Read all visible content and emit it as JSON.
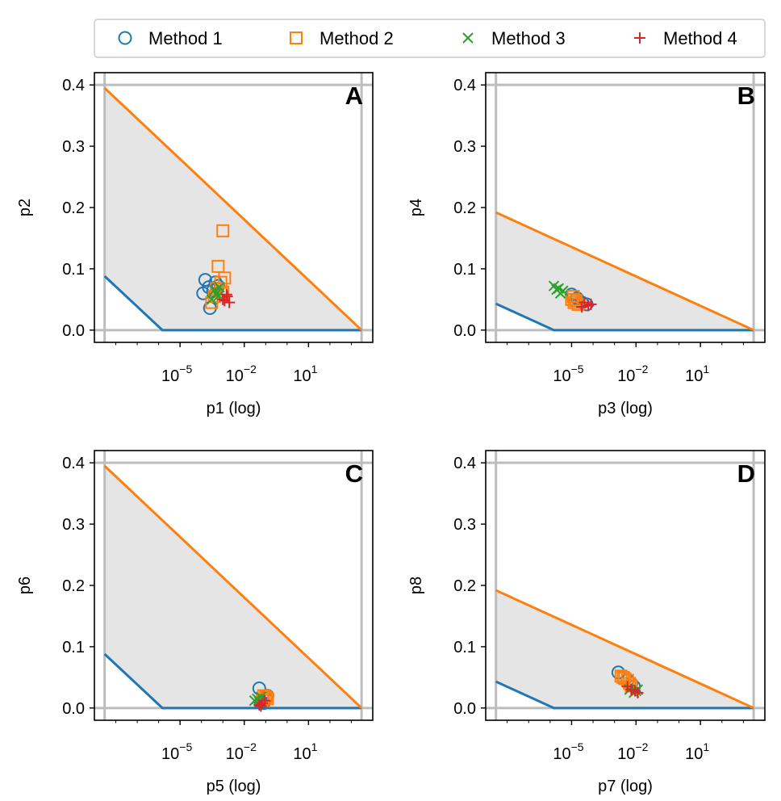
{
  "legend": {
    "placement": "top",
    "items": [
      {
        "label": "Method 1",
        "marker": "circle",
        "color": "#1f77b4"
      },
      {
        "label": "Method 2",
        "marker": "square",
        "color": "#ff7f0e"
      },
      {
        "label": "Method 3",
        "marker": "x",
        "color": "#2ca02c"
      },
      {
        "label": "Method 4",
        "marker": "plus",
        "color": "#d62728"
      }
    ]
  },
  "colors": {
    "lower_bound": "#1f77b4",
    "upper_bound": "#ff7f0e",
    "feasible_fill": "#e5e5e5",
    "reference_lines": "#bdbdbd"
  },
  "chart_data": [
    {
      "panel": "A",
      "type": "scatter",
      "xlabel": "p1 (log)",
      "ylabel": "p2",
      "xscale": "log",
      "xlim": [
        1e-09,
        10000.0
      ],
      "ylim": [
        -0.02,
        0.42
      ],
      "xticks": [
        {
          "value": 1e-05,
          "base": "10",
          "exp": "−5"
        },
        {
          "value": 0.01,
          "base": "10",
          "exp": "−2"
        },
        {
          "value": 10,
          "base": "10",
          "exp": "1"
        }
      ],
      "yticks": [
        "0.0",
        "0.1",
        "0.2",
        "0.3",
        "0.4"
      ],
      "vlines": [
        3e-09,
        3000.0
      ],
      "hlines": [
        0,
        0.4
      ],
      "lower_bound": [
        [
          3e-09,
          0.088
        ],
        [
          1.5e-06,
          0
        ],
        [
          3000.0,
          0
        ]
      ],
      "upper_bound": [
        [
          3e-09,
          0.395
        ],
        [
          3000.0,
          0
        ]
      ],
      "series": [
        {
          "name": "Method 1",
          "points": [
            [
              0.00015,
              0.082
            ],
            [
              0.00012,
              0.06
            ],
            [
              0.00022,
              0.07
            ],
            [
              0.00035,
              0.065
            ],
            [
              0.00045,
              0.078
            ],
            [
              0.00025,
              0.036
            ],
            [
              0.0006,
              0.072
            ]
          ]
        },
        {
          "name": "Method 2",
          "points": [
            [
              0.001,
              0.162
            ],
            [
              0.0006,
              0.104
            ],
            [
              0.0012,
              0.085
            ],
            [
              0.0008,
              0.078
            ],
            [
              0.0005,
              0.068
            ],
            [
              0.001,
              0.062
            ],
            [
              0.0004,
              0.055
            ],
            [
              0.0003,
              0.045
            ]
          ]
        },
        {
          "name": "Method 3",
          "points": [
            [
              0.0003,
              0.05
            ],
            [
              0.0005,
              0.06
            ],
            [
              0.0007,
              0.07
            ],
            [
              0.0004,
              0.065
            ],
            [
              0.0006,
              0.055
            ]
          ]
        },
        {
          "name": "Method 4",
          "points": [
            [
              0.0012,
              0.048
            ],
            [
              0.0016,
              0.055
            ],
            [
              0.001,
              0.05
            ],
            [
              0.002,
              0.045
            ],
            [
              0.0015,
              0.058
            ]
          ]
        }
      ]
    },
    {
      "panel": "B",
      "type": "scatter",
      "xlabel": "p3 (log)",
      "ylabel": "p4",
      "xscale": "log",
      "xlim": [
        1e-09,
        10000.0
      ],
      "ylim": [
        -0.02,
        0.42
      ],
      "xticks": [
        {
          "value": 1e-05,
          "base": "10",
          "exp": "−5"
        },
        {
          "value": 0.01,
          "base": "10",
          "exp": "−2"
        },
        {
          "value": 10,
          "base": "10",
          "exp": "1"
        }
      ],
      "yticks": [
        "0.0",
        "0.1",
        "0.2",
        "0.3",
        "0.4"
      ],
      "vlines": [
        3e-09,
        3000.0
      ],
      "hlines": [
        0,
        0.4
      ],
      "lower_bound": [
        [
          3e-09,
          0.043
        ],
        [
          1.5e-06,
          0
        ],
        [
          3000.0,
          0
        ]
      ],
      "upper_bound": [
        [
          3e-09,
          0.192
        ],
        [
          3000.0,
          0
        ]
      ],
      "series": [
        {
          "name": "Method 1",
          "points": [
            [
              1e-05,
              0.058
            ],
            [
              1.8e-05,
              0.052
            ],
            [
              3e-05,
              0.045
            ],
            [
              5e-05,
              0.042
            ]
          ]
        },
        {
          "name": "Method 2",
          "points": [
            [
              1e-05,
              0.05
            ],
            [
              1.3e-05,
              0.045
            ],
            [
              2e-05,
              0.042
            ],
            [
              1.2e-05,
              0.055
            ],
            [
              1.6e-05,
              0.048
            ]
          ]
        },
        {
          "name": "Method 3",
          "points": [
            [
              1.5e-06,
              0.072
            ],
            [
              2.5e-06,
              0.068
            ],
            [
              4e-06,
              0.064
            ],
            [
              3e-06,
              0.06
            ],
            [
              2e-06,
              0.066
            ]
          ]
        },
        {
          "name": "Method 4",
          "points": [
            [
              4e-05,
              0.045
            ],
            [
              6e-05,
              0.04
            ],
            [
              8e-05,
              0.042
            ],
            [
              3e-05,
              0.038
            ]
          ]
        }
      ]
    },
    {
      "panel": "C",
      "type": "scatter",
      "xlabel": "p5 (log)",
      "ylabel": "p6",
      "xscale": "log",
      "xlim": [
        1e-09,
        10000.0
      ],
      "ylim": [
        -0.02,
        0.42
      ],
      "xticks": [
        {
          "value": 1e-05,
          "base": "10",
          "exp": "−5"
        },
        {
          "value": 0.01,
          "base": "10",
          "exp": "−2"
        },
        {
          "value": 10,
          "base": "10",
          "exp": "1"
        }
      ],
      "yticks": [
        "0.0",
        "0.1",
        "0.2",
        "0.3",
        "0.4"
      ],
      "vlines": [
        3e-09,
        3000.0
      ],
      "hlines": [
        0,
        0.4
      ],
      "lower_bound": [
        [
          3e-09,
          0.088
        ],
        [
          1.5e-06,
          0
        ],
        [
          3000.0,
          0
        ]
      ],
      "upper_bound": [
        [
          3e-09,
          0.395
        ],
        [
          3000.0,
          0
        ]
      ],
      "series": [
        {
          "name": "Method 1",
          "points": [
            [
              0.05,
              0.032
            ],
            [
              0.06,
              0.01
            ],
            [
              0.08,
              0.008
            ],
            [
              0.12,
              0.02
            ],
            [
              0.1,
              0.015
            ]
          ]
        },
        {
          "name": "Method 2",
          "points": [
            [
              0.08,
              0.02
            ],
            [
              0.1,
              0.018
            ],
            [
              0.12,
              0.015
            ],
            [
              0.07,
              0.012
            ]
          ]
        },
        {
          "name": "Method 3",
          "points": [
            [
              0.03,
              0.012
            ],
            [
              0.04,
              0.015
            ],
            [
              0.06,
              0.018
            ],
            [
              0.05,
              0.01
            ]
          ]
        },
        {
          "name": "Method 4",
          "points": [
            [
              0.05,
              0.005
            ],
            [
              0.07,
              0.008
            ],
            [
              0.09,
              0.012
            ],
            [
              0.06,
              0.003
            ]
          ]
        }
      ]
    },
    {
      "panel": "D",
      "type": "scatter",
      "xlabel": "p7 (log)",
      "ylabel": "p8",
      "xscale": "log",
      "xlim": [
        1e-09,
        10000.0
      ],
      "ylim": [
        -0.02,
        0.42
      ],
      "xticks": [
        {
          "value": 1e-05,
          "base": "10",
          "exp": "−5"
        },
        {
          "value": 0.01,
          "base": "10",
          "exp": "−2"
        },
        {
          "value": 10,
          "base": "10",
          "exp": "1"
        }
      ],
      "yticks": [
        "0.0",
        "0.1",
        "0.2",
        "0.3",
        "0.4"
      ],
      "vlines": [
        3e-09,
        3000.0
      ],
      "hlines": [
        0,
        0.4
      ],
      "lower_bound": [
        [
          3e-09,
          0.043
        ],
        [
          1.5e-06,
          0
        ],
        [
          3000.0,
          0
        ]
      ],
      "upper_bound": [
        [
          3e-09,
          0.192
        ],
        [
          3000.0,
          0
        ]
      ],
      "series": [
        {
          "name": "Method 1",
          "points": [
            [
              0.0015,
              0.058
            ],
            [
              0.004,
              0.045
            ],
            [
              0.006,
              0.04
            ],
            [
              0.008,
              0.035
            ]
          ]
        },
        {
          "name": "Method 2",
          "points": [
            [
              0.002,
              0.052
            ],
            [
              0.003,
              0.048
            ],
            [
              0.004,
              0.045
            ],
            [
              0.005,
              0.04
            ],
            [
              0.006,
              0.036
            ],
            [
              0.0025,
              0.05
            ]
          ]
        },
        {
          "name": "Method 3",
          "points": [
            [
              0.005,
              0.03
            ],
            [
              0.008,
              0.025
            ],
            [
              0.01,
              0.028
            ],
            [
              0.012,
              0.03
            ]
          ]
        },
        {
          "name": "Method 4",
          "points": [
            [
              0.004,
              0.035
            ],
            [
              0.006,
              0.03
            ],
            [
              0.009,
              0.028
            ],
            [
              0.012,
              0.025
            ]
          ]
        }
      ]
    }
  ]
}
